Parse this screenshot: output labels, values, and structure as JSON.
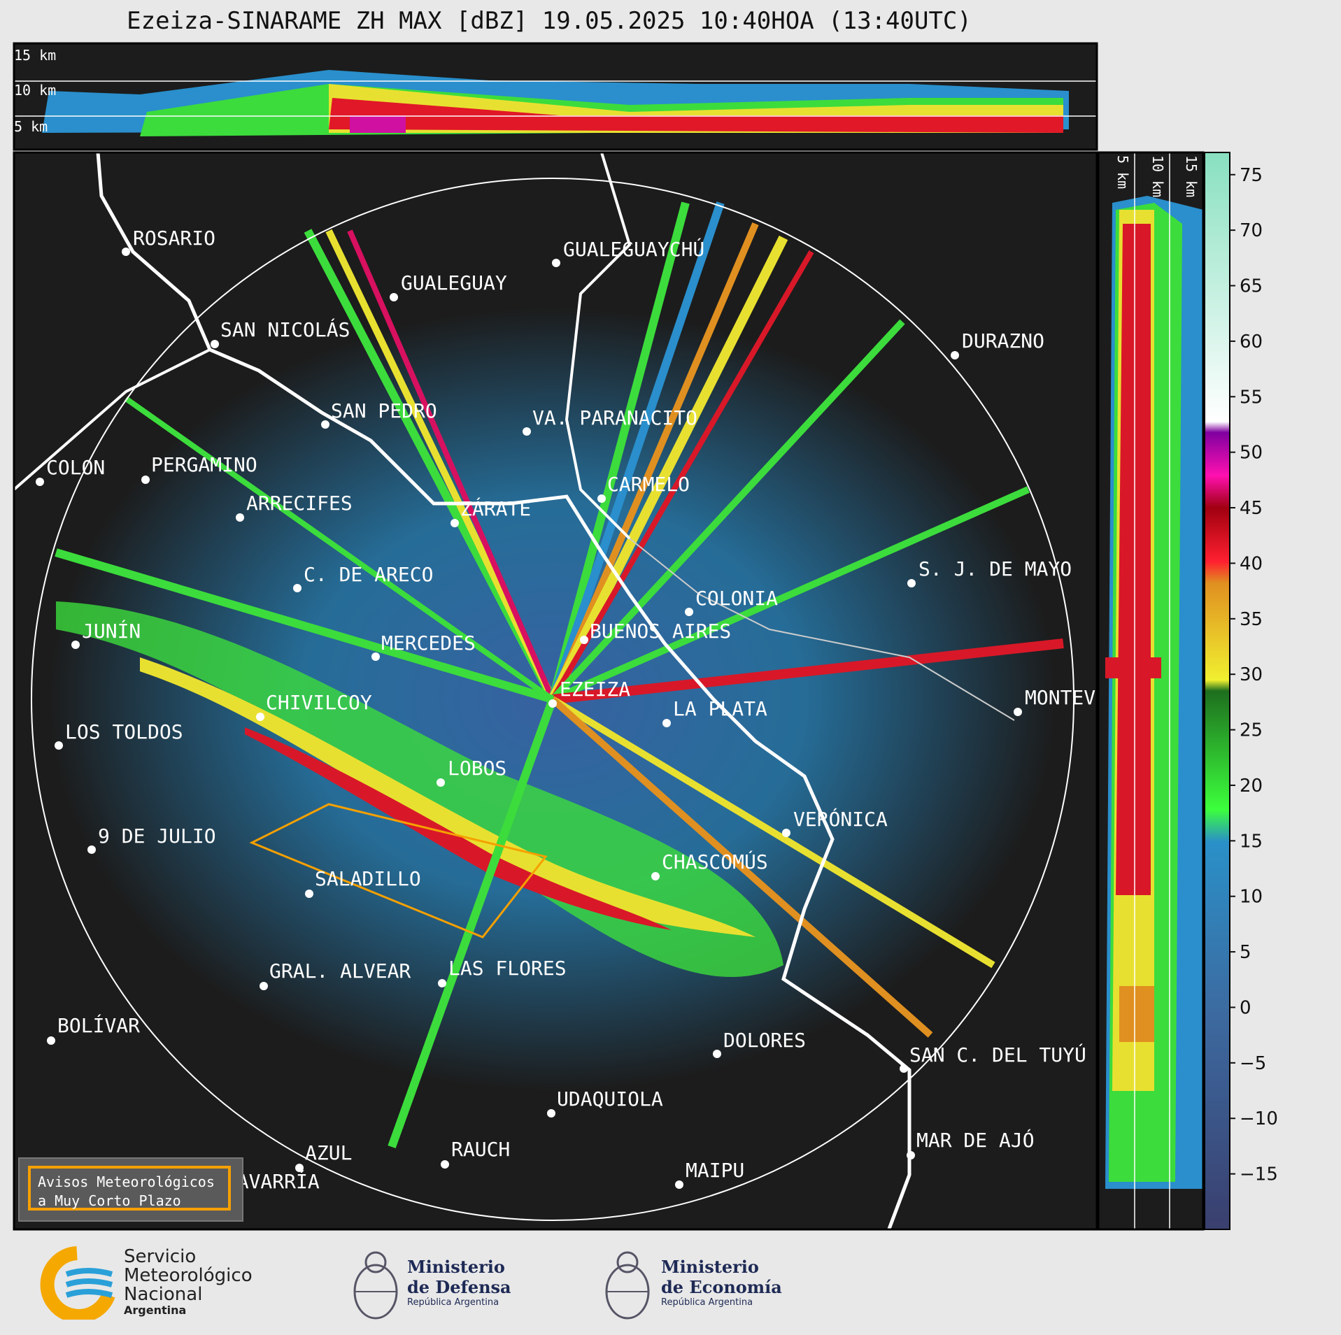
{
  "title": "Ezeiza-SINARAME ZH MAX [dBZ] 19.05.2025 10:40HOA (13:40UTC)",
  "top_panel_labels": [
    "15 km",
    "10 km",
    "5 km"
  ],
  "side_panel_labels": [
    "5 km",
    "10 km",
    "15 km"
  ],
  "colorbar": {
    "ticks": [
      "75",
      "70",
      "65",
      "60",
      "55",
      "50",
      "45",
      "40",
      "35",
      "30",
      "25",
      "20",
      "15",
      "10",
      "5",
      "0",
      "−5",
      "−10",
      "−15"
    ],
    "min": -20,
    "max": 77
  },
  "cities": [
    {
      "name": "ROSARIO"
    },
    {
      "name": "GUALEGUAYCHÚ"
    },
    {
      "name": "GUALEGUAY"
    },
    {
      "name": "SAN NICOLÁS"
    },
    {
      "name": "DURAZNO"
    },
    {
      "name": "SAN PEDRO"
    },
    {
      "name": "VA. PARANACITO"
    },
    {
      "name": "COLON"
    },
    {
      "name": "PERGAMINO"
    },
    {
      "name": "CARMELO"
    },
    {
      "name": "ARRECIFES"
    },
    {
      "name": "ZÁRATE"
    },
    {
      "name": "S. J. DE MAYO"
    },
    {
      "name": "C. DE ARECO"
    },
    {
      "name": "COLONIA"
    },
    {
      "name": "JUNÍN"
    },
    {
      "name": "MERCEDES"
    },
    {
      "name": "BUENOS AIRES"
    },
    {
      "name": "EZEIZA"
    },
    {
      "name": "MONTEV"
    },
    {
      "name": "CHIVILCOY"
    },
    {
      "name": "LA PLATA"
    },
    {
      "name": "LOS TOLDOS"
    },
    {
      "name": "LOBOS"
    },
    {
      "name": "VERÓNICA"
    },
    {
      "name": "9 DE JULIO"
    },
    {
      "name": "CHASCOMÚS"
    },
    {
      "name": "SALADILLO"
    },
    {
      "name": "GRAL. ALVEAR"
    },
    {
      "name": "LAS FLORES"
    },
    {
      "name": "BOLÍVAR"
    },
    {
      "name": "DOLORES"
    },
    {
      "name": "SAN C. DEL TUYÚ"
    },
    {
      "name": "UDAQUIOLA"
    },
    {
      "name": "MAR DE AJÓ"
    },
    {
      "name": "AZUL"
    },
    {
      "name": "RAUCH"
    },
    {
      "name": "OLAVARRÍA"
    },
    {
      "name": "MAIPU"
    }
  ],
  "legend": {
    "line1": "Avisos Meteorológicos",
    "line2": "a Muy Corto Plazo"
  },
  "logos": {
    "smn": {
      "l1": "Servicio",
      "l2": "Meteorológico",
      "l3": "Nacional",
      "l4": "Argentina"
    },
    "defensa": {
      "l1": "Ministerio",
      "l2": "de Defensa",
      "l3": "República Argentina"
    },
    "economia": {
      "l1": "Ministerio",
      "l2": "de Economía",
      "l3": "República Argentina"
    }
  }
}
